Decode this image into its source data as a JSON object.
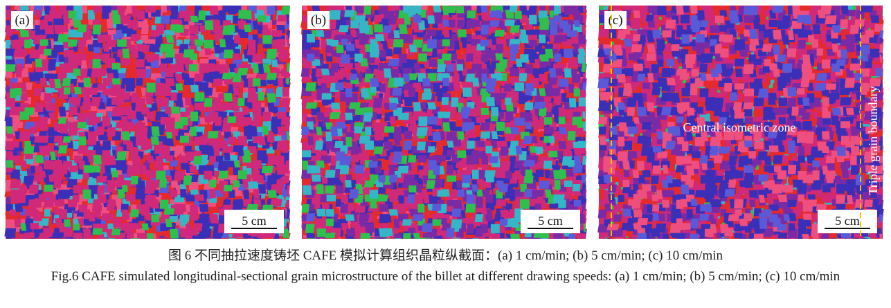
{
  "panels": [
    {
      "label": "(a)",
      "scale_bar": "5 cm"
    },
    {
      "label": "(b)",
      "scale_bar": "5 cm"
    },
    {
      "label": "(c)",
      "scale_bar": "5 cm",
      "annotations": [
        "Central isometric zone",
        "Triple grain boundary"
      ]
    }
  ],
  "caption": {
    "zh": "图 6  不同抽拉速度铸坯 CAFE 模拟计算组织晶粒纵截面：(a) 1 cm/min; (b) 5 cm/min; (c) 10 cm/min",
    "en": "Fig.6  CAFE simulated longitudinal-sectional grain microstructure of the billet at different drawing speeds: (a) 1 cm/min; (b) 5 cm/min; (c) 10 cm/min"
  }
}
